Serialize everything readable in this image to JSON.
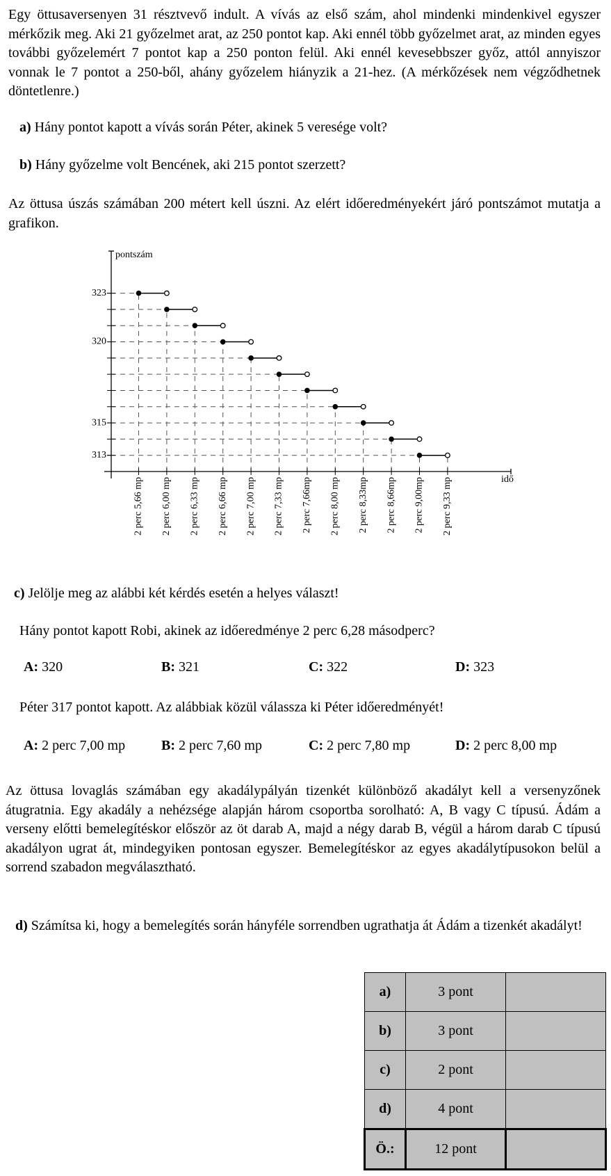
{
  "intro": "Egy öttusaversenyen 31 résztvevő indult. A vívás az első szám, ahol mindenki mindenkivel egyszer mérkőzik meg. Aki 21 győzelmet arat, az 250 pontot kap. Aki ennél több győzelmet arat, az minden egyes további győzelemért 7 pontot kap a 250 ponton felül. Aki ennél kevesebbszer győz, attól annyiszor vonnak le 7 pontot a 250-ből, ahány győzelem hiányzik a 21-hez. (A mérkőzések nem végződhetnek döntetlenre.)",
  "question_a": {
    "label": "a)",
    "text": "Hány pontot kapott a vívás során Péter, akinek 5 veresége volt?"
  },
  "question_b": {
    "label": "b)",
    "text": "Hány győzelme volt Bencének, aki 215 pontot szerzett?"
  },
  "swim_text": "Az öttusa úszás számában 200 métert kell úszni. Az elért időeredményekért járó pontszámot mutatja a grafikon.",
  "chart_data": {
    "type": "step",
    "y_label": "pontszám",
    "x_label": "idő",
    "categories": [
      "2 perc 5,66 mp",
      "2 perc 6,00 mp",
      "2 perc 6,33 mp",
      "2 perc 6,66 mp",
      "2 perc 7,00 mp",
      "2 perc 7,33 mp",
      "2 perc 7,66mp",
      "2 perc 8,00 mp",
      "2 perc 8,33mp",
      "2 perc 8,66mp",
      "2 perc 9,00mp",
      "2 perc 9,33 mp"
    ],
    "values": [
      323,
      322,
      321,
      320,
      319,
      318,
      317,
      316,
      315,
      314,
      313,
      null
    ],
    "ylim": [
      312,
      325.6
    ],
    "yticks": [
      313,
      315,
      320,
      323
    ],
    "color": "#000000"
  },
  "question_c": {
    "label": "c)",
    "text": "Jelölje meg az alábbi két kérdés esetén a helyes választ!"
  },
  "c_q1": "Hány pontot kapott Robi, akinek az időeredménye 2 perc 6,28 másodperc?",
  "c_q1_options": [
    {
      "letter": "A:",
      "text": "320"
    },
    {
      "letter": "B:",
      "text": "321"
    },
    {
      "letter": "C:",
      "text": "322"
    },
    {
      "letter": "D:",
      "text": "323"
    }
  ],
  "c_q2": "Péter 317 pontot kapott. Az alábbiak közül válassza ki Péter időeredményét!",
  "c_q2_options": [
    {
      "letter": "A:",
      "text": "2 perc 7,00 mp"
    },
    {
      "letter": "B:",
      "text": "2 perc 7,60 mp"
    },
    {
      "letter": "C:",
      "text": "2 perc 7,80 mp"
    },
    {
      "letter": "D:",
      "text": "2 perc 8,00 mp"
    }
  ],
  "riding_text": "Az öttusa lovaglás számában egy akadálypályán tizenkét különböző akadályt kell a versenyzőnek átugratnia. Egy akadály a nehézsége alapján három csoportba sorolható: A, B vagy C típusú. Ádám a verseny előtti bemelegítéskor először az öt darab A, majd a négy darab B, végül a három darab C típusú akadályon ugrat át, mindegyiken pontosan egyszer. Bemelegítéskor az egyes akadálytípusokon belül a sorrend szabadon megválasztható.",
  "question_d": {
    "label": "d)",
    "text": "Számítsa ki, hogy a bemelegítés során hányféle sorrendben ugrathatja át Ádám a tizenkét akadályt!"
  },
  "table": {
    "rows": [
      [
        "a)",
        "3 pont"
      ],
      [
        "b)",
        "3 pont"
      ],
      [
        "c)",
        "2 pont"
      ],
      [
        "d)",
        "4 pont"
      ],
      [
        "Ö.:",
        "12 pont"
      ]
    ]
  }
}
